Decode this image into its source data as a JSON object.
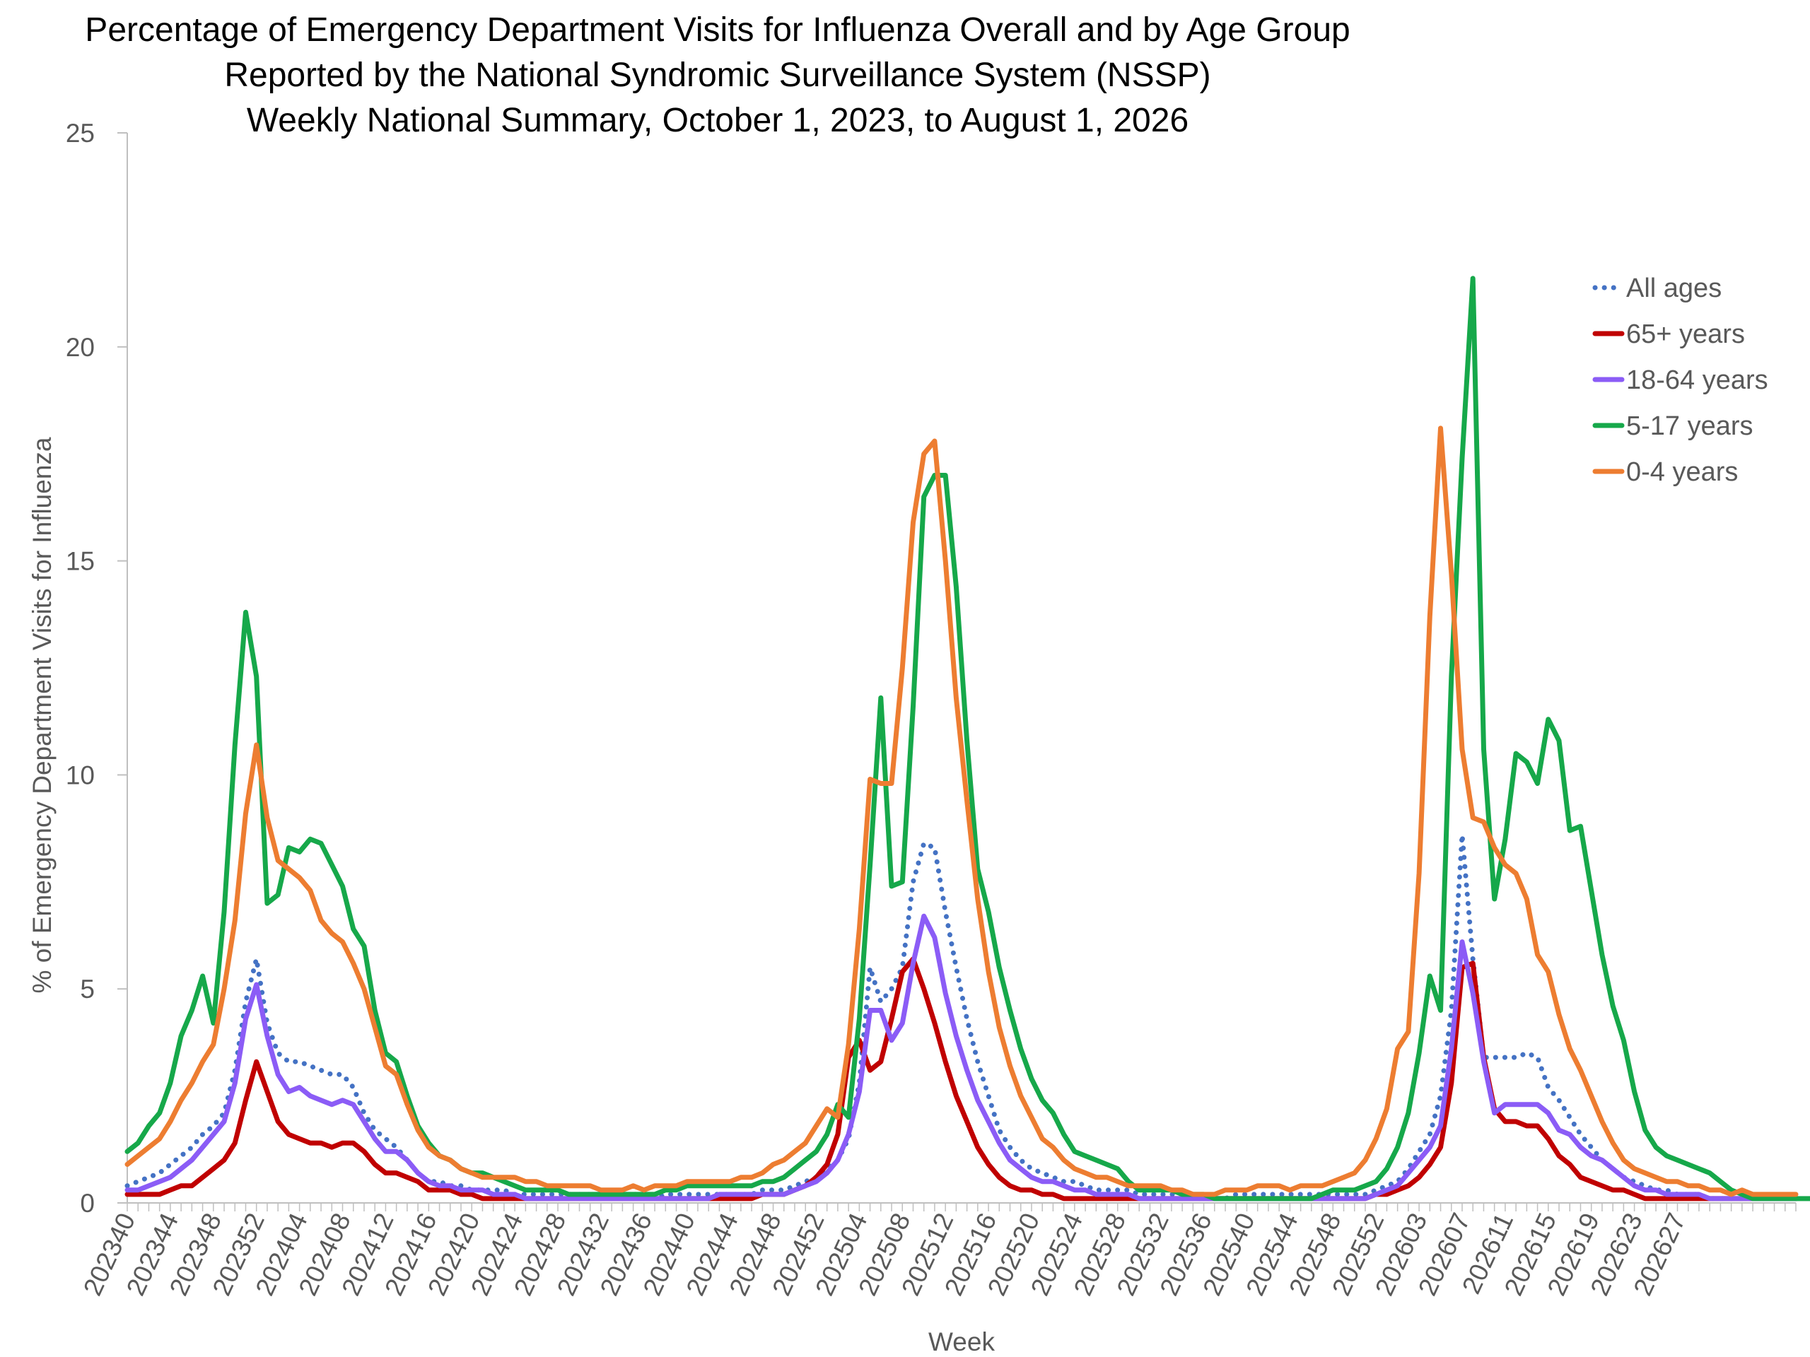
{
  "chart_data": {
    "type": "line",
    "title": [
      "Percentage of Emergency Department Visits for Influenza Overall and by Age Group",
      "Reported by the National Syndromic Surveillance System (NSSP)",
      "Weekly National Summary, October 1, 2023, to August 1, 2026"
    ],
    "xlabel": "Week",
    "ylabel": "% of Emergency Department Visits for Influenza",
    "ylim": [
      0,
      25
    ],
    "yticks": [
      0,
      5,
      10,
      15,
      20,
      25
    ],
    "grid": false,
    "legend_position": "top-right",
    "x_tick_labels": [
      "202340",
      "202344",
      "202348",
      "202352",
      "202404",
      "202408",
      "202412",
      "202416",
      "202420",
      "202424",
      "202428",
      "202432",
      "202436",
      "202440",
      "202444",
      "202448",
      "202452",
      "202504",
      "202508",
      "202512",
      "202516",
      "202520",
      "202524",
      "202528",
      "202532",
      "202536",
      "202540",
      "202544",
      "202548",
      "202552",
      "202603",
      "202607",
      "202611",
      "202615",
      "202619",
      "202623",
      "202627"
    ],
    "series": [
      {
        "name": "All ages",
        "color": "#4472C4",
        "style": "dotted",
        "values": [
          0.4,
          0.5,
          0.6,
          0.7,
          0.9,
          1.1,
          1.3,
          1.6,
          1.8,
          2.1,
          3.1,
          4.7,
          5.7,
          4.2,
          3.5,
          3.3,
          3.3,
          3.2,
          3.1,
          3.0,
          3.0,
          2.7,
          2.1,
          1.7,
          1.5,
          1.3,
          1.0,
          0.7,
          0.5,
          0.5,
          0.4,
          0.4,
          0.3,
          0.3,
          0.3,
          0.3,
          0.2,
          0.2,
          0.2,
          0.2,
          0.2,
          0.2,
          0.2,
          0.2,
          0.2,
          0.2,
          0.2,
          0.2,
          0.2,
          0.1,
          0.2,
          0.2,
          0.2,
          0.2,
          0.2,
          0.2,
          0.2,
          0.2,
          0.2,
          0.3,
          0.3,
          0.3,
          0.4,
          0.5,
          0.6,
          0.8,
          1.0,
          1.5,
          2.8,
          5.5,
          4.7,
          5.0,
          5.5,
          7.5,
          8.4,
          8.3,
          6.8,
          5.5,
          4.3,
          3.3,
          2.5,
          1.7,
          1.3,
          1.0,
          0.8,
          0.7,
          0.6,
          0.5,
          0.5,
          0.4,
          0.3,
          0.3,
          0.3,
          0.3,
          0.2,
          0.2,
          0.2,
          0.2,
          0.2,
          0.1,
          0.1,
          0.1,
          0.1,
          0.2,
          0.2,
          0.2,
          0.2,
          0.2,
          0.2,
          0.2,
          0.2,
          0.2,
          0.2,
          0.2,
          0.2,
          0.2,
          0.3,
          0.4,
          0.5,
          0.8,
          1.2,
          1.6,
          2.5,
          4.5,
          8.6,
          5.7,
          3.4,
          3.4,
          3.4,
          3.4,
          3.5,
          3.4,
          2.7,
          2.4,
          2.0,
          1.6,
          1.3,
          1.0,
          0.8,
          0.6,
          0.5,
          0.4,
          0.3,
          0.3,
          0.2,
          0.2,
          0.2,
          0.1,
          0.1,
          0.1,
          0.1,
          0.1,
          0.1,
          0.1,
          0.1,
          0.1
        ]
      },
      {
        "name": "65+ years",
        "color": "#C00000",
        "style": "solid",
        "values": [
          0.2,
          0.2,
          0.2,
          0.2,
          0.3,
          0.4,
          0.4,
          0.6,
          0.8,
          1.0,
          1.4,
          2.4,
          3.3,
          2.6,
          1.9,
          1.6,
          1.5,
          1.4,
          1.4,
          1.3,
          1.4,
          1.4,
          1.2,
          0.9,
          0.7,
          0.7,
          0.6,
          0.5,
          0.3,
          0.3,
          0.3,
          0.2,
          0.2,
          0.1,
          0.1,
          0.1,
          0.1,
          0.1,
          0.1,
          0.1,
          0.1,
          0.1,
          0.1,
          0.1,
          0.1,
          0.1,
          0.1,
          0.1,
          0.1,
          0.1,
          0.1,
          0.1,
          0.1,
          0.1,
          0.1,
          0.1,
          0.1,
          0.1,
          0.1,
          0.2,
          0.2,
          0.2,
          0.3,
          0.4,
          0.6,
          0.9,
          1.6,
          3.4,
          3.8,
          3.1,
          3.3,
          4.3,
          5.4,
          5.7,
          5.0,
          4.2,
          3.3,
          2.5,
          1.9,
          1.3,
          0.9,
          0.6,
          0.4,
          0.3,
          0.3,
          0.2,
          0.2,
          0.1,
          0.1,
          0.1,
          0.1,
          0.1,
          0.1,
          0.1,
          0.1,
          0.1,
          0.1,
          0.1,
          0.1,
          0.1,
          0.1,
          0.1,
          0.1,
          0.1,
          0.1,
          0.1,
          0.1,
          0.1,
          0.1,
          0.1,
          0.1,
          0.1,
          0.1,
          0.1,
          0.1,
          0.1,
          0.2,
          0.2,
          0.3,
          0.4,
          0.6,
          0.9,
          1.3,
          2.8,
          5.5,
          5.6,
          3.4,
          2.2,
          1.9,
          1.9,
          1.8,
          1.8,
          1.5,
          1.1,
          0.9,
          0.6,
          0.5,
          0.4,
          0.3,
          0.3,
          0.2,
          0.1,
          0.1,
          0.1,
          0.1,
          0.1,
          0.1,
          0.1,
          0.1,
          0.1,
          0.1,
          0.1,
          0.1,
          0.1,
          0.1,
          0.1
        ]
      },
      {
        "name": "18-64 years",
        "color": "#8B5CF6",
        "style": "solid",
        "values": [
          0.3,
          0.3,
          0.4,
          0.5,
          0.6,
          0.8,
          1.0,
          1.3,
          1.6,
          1.9,
          2.8,
          4.3,
          5.1,
          3.9,
          3.0,
          2.6,
          2.7,
          2.5,
          2.4,
          2.3,
          2.4,
          2.3,
          1.9,
          1.5,
          1.2,
          1.2,
          1.0,
          0.7,
          0.5,
          0.4,
          0.4,
          0.3,
          0.3,
          0.3,
          0.2,
          0.2,
          0.2,
          0.1,
          0.1,
          0.1,
          0.1,
          0.1,
          0.1,
          0.1,
          0.1,
          0.1,
          0.1,
          0.1,
          0.1,
          0.1,
          0.1,
          0.1,
          0.1,
          0.1,
          0.1,
          0.2,
          0.2,
          0.2,
          0.2,
          0.2,
          0.2,
          0.2,
          0.3,
          0.4,
          0.5,
          0.7,
          1.0,
          1.6,
          2.6,
          4.5,
          4.5,
          3.8,
          4.2,
          5.6,
          6.7,
          6.2,
          4.9,
          3.9,
          3.1,
          2.4,
          1.9,
          1.4,
          1.0,
          0.8,
          0.6,
          0.5,
          0.5,
          0.4,
          0.3,
          0.3,
          0.2,
          0.2,
          0.2,
          0.2,
          0.1,
          0.1,
          0.1,
          0.1,
          0.1,
          0.1,
          0.1,
          0.1,
          0.1,
          0.1,
          0.1,
          0.1,
          0.1,
          0.1,
          0.1,
          0.1,
          0.1,
          0.1,
          0.1,
          0.1,
          0.1,
          0.1,
          0.2,
          0.3,
          0.4,
          0.7,
          1.0,
          1.3,
          1.8,
          3.6,
          6.1,
          4.9,
          3.3,
          2.1,
          2.3,
          2.3,
          2.3,
          2.3,
          2.1,
          1.7,
          1.6,
          1.3,
          1.1,
          1.0,
          0.8,
          0.6,
          0.4,
          0.3,
          0.3,
          0.2,
          0.2,
          0.2,
          0.2,
          0.1,
          0.1,
          0.1,
          0.1,
          0.1,
          0.1,
          0.1,
          0.1,
          0.1
        ]
      },
      {
        "name": "5-17 years",
        "color": "#16A84A",
        "style": "solid",
        "values": [
          1.2,
          1.4,
          1.8,
          2.1,
          2.8,
          3.9,
          4.5,
          5.3,
          4.2,
          6.8,
          10.7,
          13.8,
          12.3,
          7.0,
          7.2,
          8.3,
          8.2,
          8.5,
          8.4,
          7.9,
          7.4,
          6.4,
          6.0,
          4.5,
          3.5,
          3.3,
          2.5,
          1.8,
          1.4,
          1.1,
          1.0,
          0.8,
          0.7,
          0.7,
          0.6,
          0.5,
          0.4,
          0.3,
          0.3,
          0.3,
          0.3,
          0.2,
          0.2,
          0.2,
          0.2,
          0.2,
          0.2,
          0.2,
          0.2,
          0.2,
          0.3,
          0.3,
          0.4,
          0.4,
          0.4,
          0.4,
          0.4,
          0.4,
          0.4,
          0.5,
          0.5,
          0.6,
          0.8,
          1.0,
          1.2,
          1.6,
          2.3,
          2.0,
          4.3,
          7.9,
          11.8,
          7.4,
          7.5,
          11.6,
          16.5,
          17.0,
          17.0,
          14.4,
          10.8,
          7.8,
          6.8,
          5.5,
          4.5,
          3.6,
          2.9,
          2.4,
          2.1,
          1.6,
          1.2,
          1.1,
          1.0,
          0.9,
          0.8,
          0.5,
          0.3,
          0.3,
          0.3,
          0.3,
          0.2,
          0.2,
          0.2,
          0.1,
          0.1,
          0.1,
          0.1,
          0.1,
          0.1,
          0.1,
          0.1,
          0.1,
          0.1,
          0.2,
          0.3,
          0.3,
          0.3,
          0.4,
          0.5,
          0.8,
          1.3,
          2.1,
          3.5,
          5.3,
          4.5,
          12.3,
          17.4,
          21.6,
          10.6,
          7.1,
          8.5,
          10.5,
          10.3,
          9.8,
          11.3,
          10.8,
          8.7,
          8.8,
          7.3,
          5.8,
          4.6,
          3.8,
          2.6,
          1.7,
          1.3,
          1.1,
          1.0,
          0.9,
          0.8,
          0.7,
          0.5,
          0.3,
          0.2,
          0.1,
          0.1,
          0.1,
          0.1,
          0.1,
          0.1,
          0.1
        ]
      },
      {
        "name": "0-4 years",
        "color": "#ED7D31",
        "style": "solid",
        "values": [
          0.9,
          1.1,
          1.3,
          1.5,
          1.9,
          2.4,
          2.8,
          3.3,
          3.7,
          5.0,
          6.6,
          9.1,
          10.7,
          9.0,
          8.0,
          7.8,
          7.6,
          7.3,
          6.6,
          6.3,
          6.1,
          5.6,
          5.0,
          4.1,
          3.2,
          3.0,
          2.3,
          1.7,
          1.3,
          1.1,
          1.0,
          0.8,
          0.7,
          0.6,
          0.6,
          0.6,
          0.6,
          0.5,
          0.5,
          0.4,
          0.4,
          0.4,
          0.4,
          0.4,
          0.3,
          0.3,
          0.3,
          0.4,
          0.3,
          0.4,
          0.4,
          0.4,
          0.5,
          0.5,
          0.5,
          0.5,
          0.5,
          0.6,
          0.6,
          0.7,
          0.9,
          1.0,
          1.2,
          1.4,
          1.8,
          2.2,
          2.0,
          3.7,
          6.4,
          9.9,
          9.8,
          9.8,
          12.5,
          15.9,
          17.5,
          17.8,
          15.0,
          11.8,
          9.4,
          7.1,
          5.4,
          4.1,
          3.2,
          2.5,
          2.0,
          1.5,
          1.3,
          1.0,
          0.8,
          0.7,
          0.6,
          0.6,
          0.5,
          0.4,
          0.4,
          0.4,
          0.4,
          0.3,
          0.3,
          0.2,
          0.2,
          0.2,
          0.3,
          0.3,
          0.3,
          0.4,
          0.4,
          0.4,
          0.3,
          0.4,
          0.4,
          0.4,
          0.5,
          0.6,
          0.7,
          1.0,
          1.5,
          2.2,
          3.6,
          4.0,
          7.7,
          13.7,
          18.1,
          14.7,
          10.6,
          9.0,
          8.9,
          8.3,
          7.9,
          7.7,
          7.1,
          5.8,
          5.4,
          4.4,
          3.6,
          3.1,
          2.5,
          1.9,
          1.4,
          1.0,
          0.8,
          0.7,
          0.6,
          0.5,
          0.5,
          0.4,
          0.4,
          0.3,
          0.3,
          0.2,
          0.3,
          0.2,
          0.2,
          0.2,
          0.2,
          0.2
        ]
      }
    ]
  }
}
